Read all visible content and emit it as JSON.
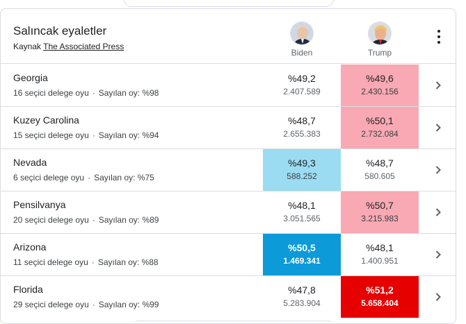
{
  "header": {
    "title": "Salıncak eyaletler",
    "source_prefix": "Kaynak",
    "source_link": "The Associated Press"
  },
  "candidates": [
    {
      "name": "Biden"
    },
    {
      "name": "Trump"
    }
  ],
  "rows": [
    {
      "state": "Georgia",
      "electors": "16 seçici delege oyu",
      "counted": "Sayılan oy: %98",
      "biden_pct": "%49,2",
      "biden_votes": "2.407.589",
      "trump_pct": "%49,6",
      "trump_votes": "2.430.156",
      "biden_fill": "none",
      "trump_fill": "light-red"
    },
    {
      "state": "Kuzey Carolina",
      "electors": "15 seçici delege oyu",
      "counted": "Sayılan oy: %94",
      "biden_pct": "%48,7",
      "biden_votes": "2.655.383",
      "trump_pct": "%50,1",
      "trump_votes": "2.732.084",
      "biden_fill": "none",
      "trump_fill": "light-red"
    },
    {
      "state": "Nevada",
      "electors": "6 seçici delege oyu",
      "counted": "Sayılan oy: %75",
      "biden_pct": "%49,3",
      "biden_votes": "588.252",
      "trump_pct": "%48,7",
      "trump_votes": "580.605",
      "biden_fill": "light-blue",
      "trump_fill": "none"
    },
    {
      "state": "Pensilvanya",
      "electors": "20 seçici delege oyu",
      "counted": "Sayılan oy: %89",
      "biden_pct": "%48,1",
      "biden_votes": "3.051.565",
      "trump_pct": "%50,7",
      "trump_votes": "3.215.983",
      "biden_fill": "none",
      "trump_fill": "light-red"
    },
    {
      "state": "Arizona",
      "electors": "11 seçici delege oyu",
      "counted": "Sayılan oy: %88",
      "biden_pct": "%50,5",
      "biden_votes": "1.469.341",
      "trump_pct": "%48,1",
      "trump_votes": "1.400.951",
      "biden_fill": "dark-blue",
      "trump_fill": "none"
    },
    {
      "state": "Florida",
      "electors": "29 seçici delege oyu",
      "counted": "Sayılan oy: %99",
      "biden_pct": "%47,8",
      "biden_votes": "5.283.904",
      "trump_pct": "%51,2",
      "trump_votes": "5.658.404",
      "biden_fill": "none",
      "trump_fill": "dark-red"
    }
  ],
  "colors": {
    "light_red": "#f8a9b3",
    "light_blue": "#9bdcf2",
    "dark_blue": "#0c9ad8",
    "dark_red": "#e60000",
    "border": "#dadce0"
  },
  "icons": {
    "menu": "more-vert-icon",
    "row_action": "chevron-right-icon"
  }
}
